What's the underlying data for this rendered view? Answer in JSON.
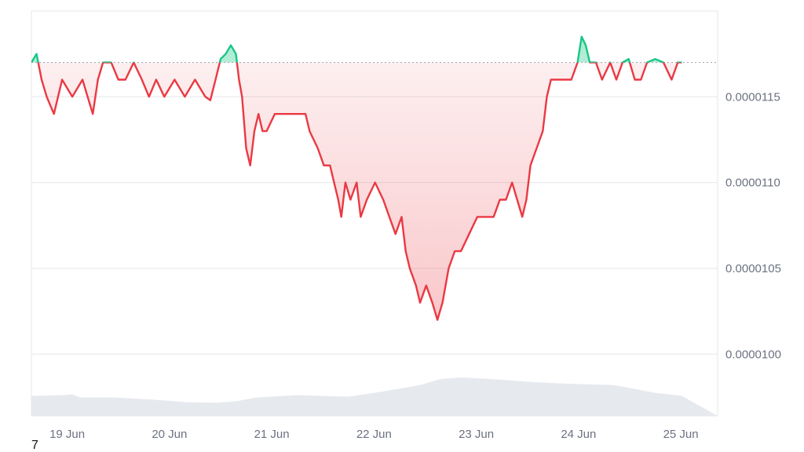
{
  "chart_data": {
    "type": "area",
    "x": [
      "19 Jun",
      "20 Jun",
      "21 Jun",
      "22 Jun",
      "23 Jun",
      "24 Jun",
      "25 Jun"
    ],
    "x_tick_labels": [
      "19 Jun",
      "20 Jun",
      "21 Jun",
      "22 Jun",
      "23 Jun",
      "24 Jun",
      "25 Jun"
    ],
    "y_tick_labels": [
      "0.0000115",
      "0.0000110",
      "0.0000105",
      "0.0000100"
    ],
    "y_ticks": [
      1.15e-05,
      1.1e-05,
      1.05e-05,
      1e-05
    ],
    "ylim": [
      9.64e-06,
      1.2e-05
    ],
    "baseline": 1.17e-05,
    "grid": true,
    "series": [
      {
        "points": [
          [
            0.0,
            1.17e-05
          ],
          [
            0.05,
            1.175e-05
          ],
          [
            0.1,
            1.16e-05
          ],
          [
            0.15,
            1.15e-05
          ],
          [
            0.22,
            1.14e-05
          ],
          [
            0.3,
            1.16e-05
          ],
          [
            0.4,
            1.15e-05
          ],
          [
            0.5,
            1.16e-05
          ],
          [
            0.55,
            1.15e-05
          ],
          [
            0.6,
            1.14e-05
          ],
          [
            0.65,
            1.16e-05
          ],
          [
            0.7,
            1.17e-05
          ],
          [
            0.78,
            1.17e-05
          ],
          [
            0.85,
            1.16e-05
          ],
          [
            0.92,
            1.16e-05
          ],
          [
            1.0,
            1.17e-05
          ],
          [
            1.08,
            1.16e-05
          ],
          [
            1.15,
            1.15e-05
          ],
          [
            1.22,
            1.16e-05
          ],
          [
            1.3,
            1.15e-05
          ],
          [
            1.4,
            1.16e-05
          ],
          [
            1.5,
            1.15e-05
          ],
          [
            1.6,
            1.16e-05
          ],
          [
            1.7,
            1.15e-05
          ],
          [
            1.75,
            1.148e-05
          ],
          [
            1.8,
            1.16e-05
          ],
          [
            1.85,
            1.172e-05
          ],
          [
            1.9,
            1.175e-05
          ],
          [
            1.95,
            1.18e-05
          ],
          [
            2.0,
            1.175e-05
          ],
          [
            2.03,
            1.16e-05
          ],
          [
            2.06,
            1.15e-05
          ],
          [
            2.1,
            1.12e-05
          ],
          [
            2.14,
            1.11e-05
          ],
          [
            2.18,
            1.13e-05
          ],
          [
            2.22,
            1.14e-05
          ],
          [
            2.26,
            1.13e-05
          ],
          [
            2.3,
            1.13e-05
          ],
          [
            2.38,
            1.14e-05
          ],
          [
            2.46,
            1.14e-05
          ],
          [
            2.55,
            1.14e-05
          ],
          [
            2.62,
            1.14e-05
          ],
          [
            2.68,
            1.14e-05
          ],
          [
            2.72,
            1.13e-05
          ],
          [
            2.8,
            1.12e-05
          ],
          [
            2.86,
            1.11e-05
          ],
          [
            2.92,
            1.11e-05
          ],
          [
            2.96,
            1.1e-05
          ],
          [
            3.0,
            1.09e-05
          ],
          [
            3.03,
            1.08e-05
          ],
          [
            3.07,
            1.1e-05
          ],
          [
            3.12,
            1.09e-05
          ],
          [
            3.18,
            1.1e-05
          ],
          [
            3.22,
            1.08e-05
          ],
          [
            3.28,
            1.09e-05
          ],
          [
            3.36,
            1.1e-05
          ],
          [
            3.44,
            1.09e-05
          ],
          [
            3.5,
            1.08e-05
          ],
          [
            3.56,
            1.07e-05
          ],
          [
            3.62,
            1.08e-05
          ],
          [
            3.66,
            1.06e-05
          ],
          [
            3.7,
            1.05e-05
          ],
          [
            3.76,
            1.04e-05
          ],
          [
            3.8,
            1.03e-05
          ],
          [
            3.86,
            1.04e-05
          ],
          [
            3.92,
            1.03e-05
          ],
          [
            3.97,
            1.02e-05
          ],
          [
            4.02,
            1.03e-05
          ],
          [
            4.08,
            1.05e-05
          ],
          [
            4.14,
            1.06e-05
          ],
          [
            4.2,
            1.06e-05
          ],
          [
            4.28,
            1.07e-05
          ],
          [
            4.36,
            1.08e-05
          ],
          [
            4.44,
            1.08e-05
          ],
          [
            4.52,
            1.08e-05
          ],
          [
            4.58,
            1.09e-05
          ],
          [
            4.64,
            1.09e-05
          ],
          [
            4.7,
            1.1e-05
          ],
          [
            4.75,
            1.09e-05
          ],
          [
            4.8,
            1.08e-05
          ],
          [
            4.84,
            1.09e-05
          ],
          [
            4.88,
            1.11e-05
          ],
          [
            4.94,
            1.12e-05
          ],
          [
            5.0,
            1.13e-05
          ],
          [
            5.04,
            1.15e-05
          ],
          [
            5.08,
            1.16e-05
          ],
          [
            5.14,
            1.16e-05
          ],
          [
            5.2,
            1.16e-05
          ],
          [
            5.28,
            1.16e-05
          ],
          [
            5.34,
            1.17e-05
          ],
          [
            5.38,
            1.185e-05
          ],
          [
            5.42,
            1.18e-05
          ],
          [
            5.46,
            1.17e-05
          ],
          [
            5.52,
            1.17e-05
          ],
          [
            5.58,
            1.16e-05
          ],
          [
            5.66,
            1.17e-05
          ],
          [
            5.72,
            1.16e-05
          ],
          [
            5.78,
            1.17e-05
          ],
          [
            5.84,
            1.172e-05
          ],
          [
            5.9,
            1.16e-05
          ],
          [
            5.96,
            1.16e-05
          ],
          [
            6.02,
            1.17e-05
          ],
          [
            6.1,
            1.172e-05
          ],
          [
            6.18,
            1.17e-05
          ],
          [
            6.26,
            1.16e-05
          ],
          [
            6.32,
            1.17e-05
          ],
          [
            6.36,
            1.17e-05
          ]
        ]
      }
    ],
    "colors": {
      "above": "#16c784",
      "below": "#ea3943",
      "grid": "#e5e7eb",
      "baseline": "#9ca3af",
      "volume": "#e6e9ee",
      "ticks": "#6b7280"
    },
    "volume": [
      [
        0.0,
        0.26
      ],
      [
        0.3,
        0.27
      ],
      [
        0.4,
        0.28
      ],
      [
        0.48,
        0.24
      ],
      [
        0.8,
        0.24
      ],
      [
        1.2,
        0.21
      ],
      [
        1.5,
        0.18
      ],
      [
        1.8,
        0.17
      ],
      [
        2.0,
        0.19
      ],
      [
        2.2,
        0.24
      ],
      [
        2.6,
        0.27
      ],
      [
        3.1,
        0.25
      ],
      [
        3.4,
        0.31
      ],
      [
        3.8,
        0.4
      ],
      [
        4.0,
        0.48
      ],
      [
        4.2,
        0.5
      ],
      [
        4.5,
        0.48
      ],
      [
        4.9,
        0.44
      ],
      [
        5.2,
        0.42
      ],
      [
        5.7,
        0.4
      ],
      [
        6.1,
        0.3
      ],
      [
        6.36,
        0.26
      ]
    ]
  },
  "misc": {
    "stray_label": "7"
  }
}
